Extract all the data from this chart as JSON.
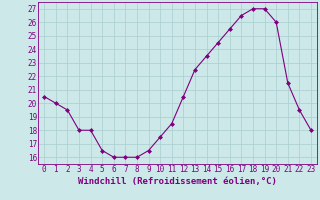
{
  "x": [
    0,
    1,
    2,
    3,
    4,
    5,
    6,
    7,
    8,
    9,
    10,
    11,
    12,
    13,
    14,
    15,
    16,
    17,
    18,
    19,
    20,
    21,
    22,
    23
  ],
  "y": [
    20.5,
    20.0,
    19.5,
    18.0,
    18.0,
    16.5,
    16.0,
    16.0,
    16.0,
    16.5,
    17.5,
    18.5,
    20.5,
    22.5,
    23.5,
    24.5,
    25.5,
    26.5,
    27.0,
    27.0,
    26.0,
    21.5,
    19.5,
    18.0
  ],
  "line_color": "#800080",
  "marker": "D",
  "marker_size": 2,
  "bg_color": "#cce8e8",
  "grid_color": "#aacece",
  "xlabel": "Windchill (Refroidissement éolien,°C)",
  "xlabel_color": "#800080",
  "ylim": [
    15.5,
    27.5
  ],
  "yticks": [
    16,
    17,
    18,
    19,
    20,
    21,
    22,
    23,
    24,
    25,
    26,
    27
  ],
  "xticks": [
    0,
    1,
    2,
    3,
    4,
    5,
    6,
    7,
    8,
    9,
    10,
    11,
    12,
    13,
    14,
    15,
    16,
    17,
    18,
    19,
    20,
    21,
    22,
    23
  ],
  "tick_label_fontsize": 5.5,
  "xlabel_fontsize": 6.5,
  "tick_color": "#800080",
  "spine_color": "#800080",
  "xlim": [
    -0.5,
    23.5
  ]
}
